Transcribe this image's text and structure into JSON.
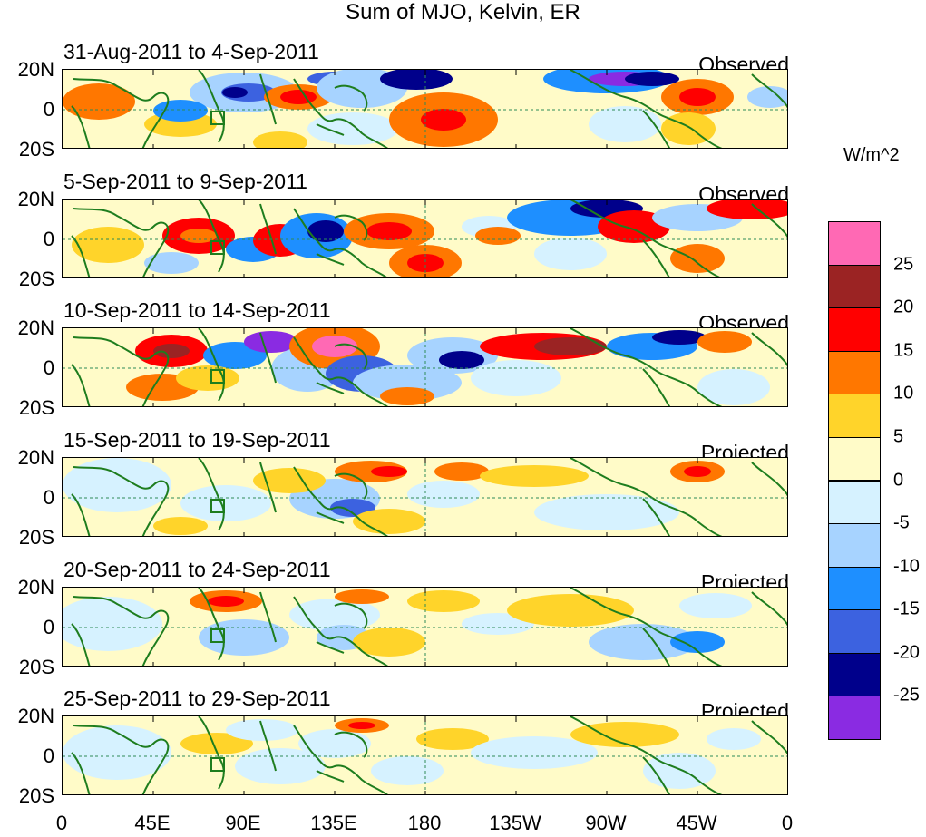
{
  "title": "Sum of MJO, Kelvin, ER",
  "units": "W/m^2",
  "y_axis_labels": [
    "20N",
    "0",
    "20S"
  ],
  "x_axis_labels": [
    "0",
    "45E",
    "90E",
    "135E",
    "180",
    "135W",
    "90W",
    "45W",
    "0"
  ],
  "colorbar": {
    "levels": [
      "25",
      "20",
      "15",
      "10",
      "5",
      "0",
      "-5",
      "-10",
      "-15",
      "-20",
      "-25"
    ],
    "colors": [
      "#ff69b4",
      "#9b2323",
      "#ff0000",
      "#ff7700",
      "#ffd42a",
      "#fffbc8",
      "#d6f2ff",
      "#a7d3ff",
      "#1e8fff",
      "#3c62e0",
      "#00008b",
      "#8a2be2"
    ]
  },
  "panels": [
    {
      "period": "31-Aug-2011 to 4-Sep-2011",
      "status": "Observed"
    },
    {
      "period": "5-Sep-2011 to 9-Sep-2011",
      "status": "Observed"
    },
    {
      "period": "10-Sep-2011 to 14-Sep-2011",
      "status": "Observed"
    },
    {
      "period": "15-Sep-2011 to 19-Sep-2011",
      "status": "Projected"
    },
    {
      "period": "20-Sep-2011 to 24-Sep-2011",
      "status": "Projected"
    },
    {
      "period": "25-Sep-2011 to 29-Sep-2011",
      "status": "Projected"
    }
  ]
}
